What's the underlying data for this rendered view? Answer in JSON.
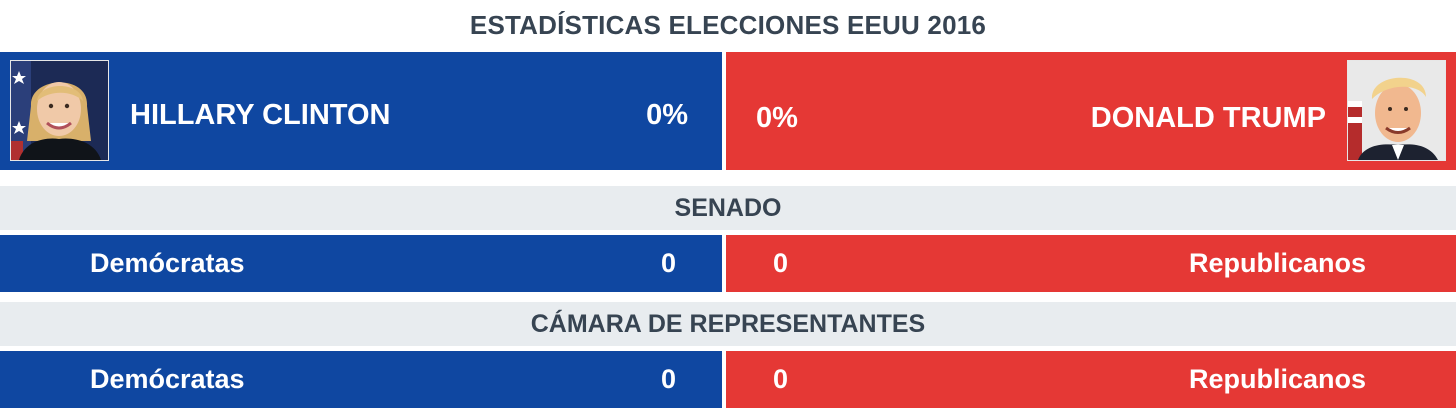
{
  "title": "ESTADÍSTICAS ELECCIONES EEUU 2016",
  "colors": {
    "democrat": "#0f47a1",
    "republican": "#e53835",
    "section_bg": "#e8ecef",
    "heading_text": "#374452"
  },
  "candidates": {
    "left": {
      "name": "HILLARY CLINTON",
      "percent": "0%",
      "photo_icon": "candidate-photo-icon"
    },
    "right": {
      "name": "DONALD TRUMP",
      "percent": "0%",
      "photo_icon": "candidate-photo-icon"
    }
  },
  "senate": {
    "heading": "SENADO",
    "left": {
      "party": "Demócratas",
      "value": "0"
    },
    "right": {
      "party": "Republicanos",
      "value": "0"
    }
  },
  "house": {
    "heading": "CÁMARA DE REPRESENTANTES",
    "left": {
      "party": "Demócratas",
      "value": "0"
    },
    "right": {
      "party": "Republicanos",
      "value": "0"
    }
  }
}
